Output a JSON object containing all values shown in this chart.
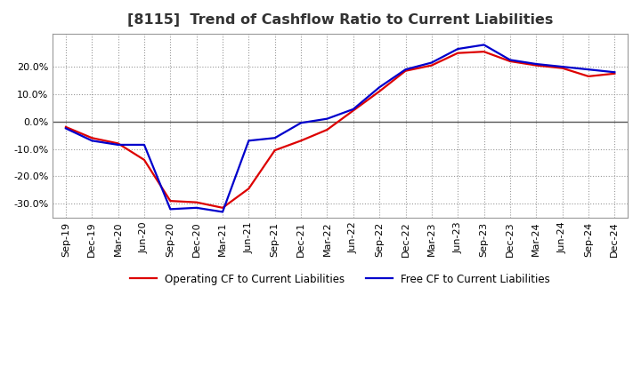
{
  "title": "[8115]  Trend of Cashflow Ratio to Current Liabilities",
  "x_labels": [
    "Sep-19",
    "Dec-19",
    "Mar-20",
    "Jun-20",
    "Sep-20",
    "Dec-20",
    "Mar-21",
    "Jun-21",
    "Sep-21",
    "Dec-21",
    "Mar-22",
    "Jun-22",
    "Sep-22",
    "Dec-22",
    "Mar-23",
    "Jun-23",
    "Sep-23",
    "Dec-23",
    "Mar-24",
    "Jun-24",
    "Sep-24",
    "Dec-24"
  ],
  "operating_cf": [
    -2.0,
    -6.0,
    -8.0,
    -14.0,
    -29.0,
    -29.5,
    -31.5,
    -24.5,
    -10.5,
    -7.0,
    -3.0,
    4.0,
    11.0,
    18.5,
    20.5,
    25.0,
    25.5,
    22.0,
    20.5,
    19.5,
    16.5,
    17.5
  ],
  "free_cf": [
    -2.5,
    -7.0,
    -8.5,
    -8.5,
    -32.0,
    -31.5,
    -33.0,
    -7.0,
    -6.0,
    -0.5,
    1.0,
    4.5,
    12.5,
    19.0,
    21.5,
    26.5,
    28.0,
    22.5,
    21.0,
    20.0,
    19.0,
    18.0
  ],
  "operating_color": "#dd0000",
  "free_color": "#0000cc",
  "line_width": 1.6,
  "ylim": [
    -35,
    32
  ],
  "yticks": [
    -30,
    -20,
    -10,
    0,
    10,
    20
  ],
  "background_color": "#ffffff",
  "plot_bg_color": "#ffffff",
  "grid_color": "#999999",
  "title_fontsize": 11.5,
  "tick_fontsize": 8,
  "legend_operating": "Operating CF to Current Liabilities",
  "legend_free": "Free CF to Current Liabilities"
}
